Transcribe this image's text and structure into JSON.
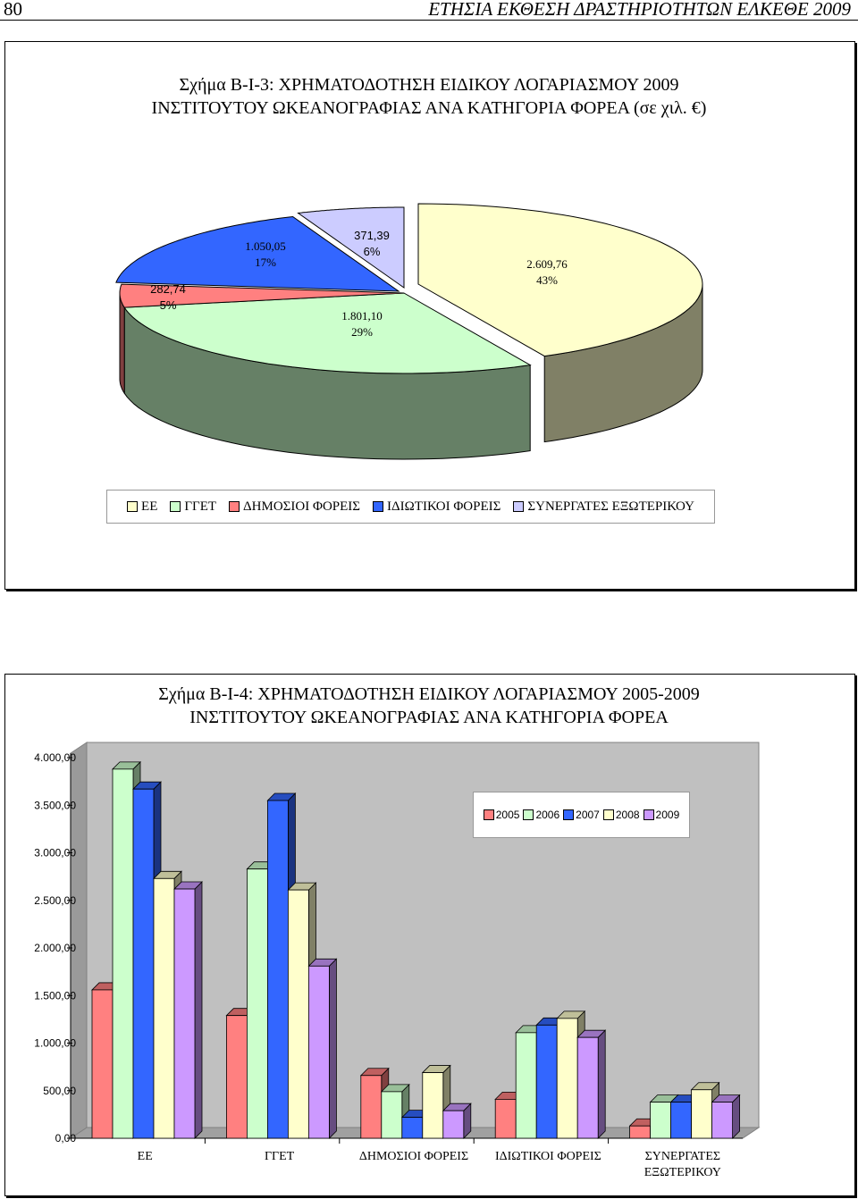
{
  "header": {
    "page_number": "80",
    "running_title": "ΕΤΗΣΙΑ ΕΚΘΕΣΗ ΔΡΑΣΤΗΡΙΟΤΗΤΩΝ ΕΛΚΕΘΕ 2009"
  },
  "chart_data": [
    {
      "type": "pie",
      "title_line1": "Σχήμα Β-Ι-3: ΧΡΗΜΑΤΟΔΟΤΗΣΗ ΕΙΔΙΚΟΥ ΛΟΓΑΡΙΑΣΜΟΥ 2009",
      "title_line2": "ΙΝΣΤΙΤΟΥΤΟΥ ΩΚΕΑΝΟΓΡΑΦΙΑΣ ΑΝΑ ΚΑΤΗΓΟΡΙΑ ΦΟΡΕΑ (σε χιλ. €)",
      "legend_position": "bottom",
      "slices": [
        {
          "label": "ΕΕ",
          "value": 2609.76,
          "value_text": "2.609,76",
          "percent_text": "43%",
          "color": "#ffffcc"
        },
        {
          "label": "ΓΓΕΤ",
          "value": 1801.1,
          "value_text": "1.801,10",
          "percent_text": "29%",
          "color": "#ccffcc"
        },
        {
          "label": "ΔΗΜΟΣΙΟΙ ΦΟΡΕΙΣ",
          "value": 282.74,
          "value_text": "282,74",
          "percent_text": "5%",
          "color": "#ff8080"
        },
        {
          "label": "ΙΔΙΩΤΙΚΟΙ ΦΟΡΕΙΣ",
          "value": 1050.05,
          "value_text": "1.050,05",
          "percent_text": "17%",
          "color": "#3366ff"
        },
        {
          "label": "ΣΥΝΕΡΓΑΤΕΣ ΕΞΩΤΕΡΙΚΟΥ",
          "value": 371.39,
          "value_text": "371,39",
          "percent_text": "6%",
          "color": "#ccccff"
        }
      ]
    },
    {
      "type": "bar",
      "title_line1": "Σχήμα Β-Ι-4: ΧΡΗΜΑΤΟΔΟΤΗΣΗ ΕΙΔΙΚΟΥ ΛΟΓΑΡΙΑΣΜΟΥ 2005-2009",
      "title_line2": "ΙΝΣΤΙΤΟΥΤΟΥ ΩΚΕΑΝΟΓΡΑΦΙΑΣ ΑΝΑ ΚΑΤΗΓΟΡΙΑ ΦΟΡΕΑ",
      "legend_position": "top-right",
      "ylim": [
        0,
        4000
      ],
      "yticks": [
        "0,00",
        "500,00",
        "1.000,00",
        "1.500,00",
        "2.000,00",
        "2.500,00",
        "3.000,00",
        "3.500,00",
        "4.000,00"
      ],
      "categories": [
        {
          "line1": "ΕΕ",
          "line2": ""
        },
        {
          "line1": "ΓΓΕΤ",
          "line2": ""
        },
        {
          "line1": "ΔΗΜΟΣΙΟΙ ΦΟΡΕΙΣ",
          "line2": ""
        },
        {
          "line1": "ΙΔΙΩΤΙΚΟΙ ΦΟΡΕΙΣ",
          "line2": ""
        },
        {
          "line1": "ΣΥΝΕΡΓΑΤΕΣ",
          "line2": "ΕΞΩΤΕΡΙΚΟΥ"
        }
      ],
      "series": [
        {
          "name": "2005",
          "color": "#ff8080",
          "values": [
            1550,
            1280,
            650,
            400,
            120
          ]
        },
        {
          "name": "2006",
          "color": "#ccffcc",
          "values": [
            3870,
            2820,
            480,
            1100,
            370
          ]
        },
        {
          "name": "2007",
          "color": "#3366ff",
          "values": [
            3660,
            3540,
            210,
            1180,
            370
          ]
        },
        {
          "name": "2008",
          "color": "#ffffcc",
          "values": [
            2720,
            2600,
            680,
            1250,
            500
          ]
        },
        {
          "name": "2009",
          "color": "#cc99ff",
          "values": [
            2610,
            1800,
            280,
            1050,
            370
          ]
        }
      ]
    }
  ]
}
